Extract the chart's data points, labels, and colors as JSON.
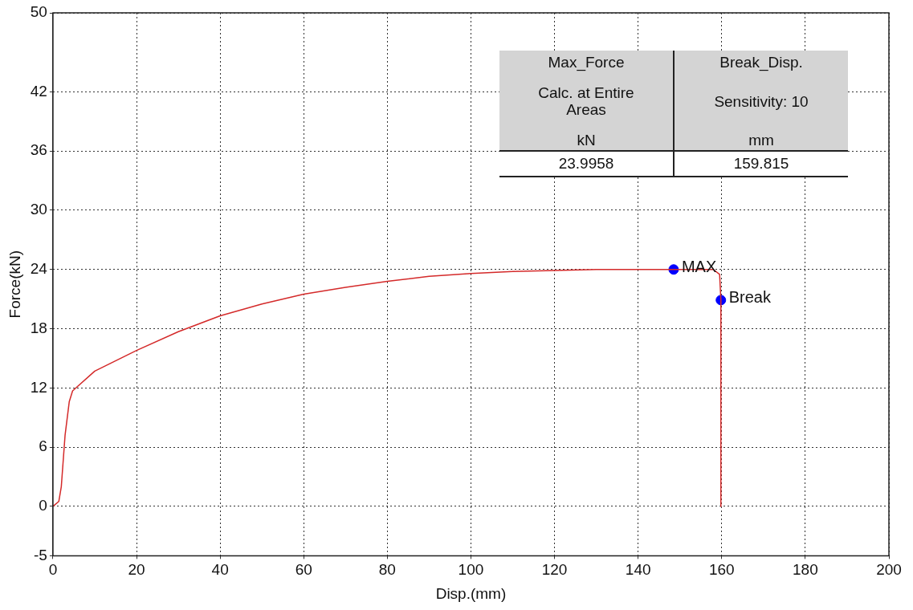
{
  "chart_data": {
    "type": "line",
    "xlabel": "Disp.(mm)",
    "ylabel": "Force(kN)",
    "xlim": [
      0,
      200
    ],
    "xticks": [
      0,
      20,
      40,
      60,
      80,
      100,
      120,
      140,
      160,
      180,
      200
    ],
    "ylim": [
      -5,
      50
    ],
    "yticks": [
      -5,
      0,
      6,
      12,
      18,
      24,
      30,
      36,
      42,
      50
    ],
    "grid": true,
    "legend": false,
    "marker": "none",
    "line_style": "solid",
    "series": [
      {
        "color": "#d42a2a",
        "x": [
          0,
          1.4,
          2.0,
          2.9,
          3.9,
          4.7,
          10,
          20,
          30,
          40,
          50,
          60,
          70,
          80,
          90,
          100,
          110,
          120,
          130,
          140,
          148.5,
          158,
          159.5,
          159.8,
          159.8
        ],
        "values": [
          0,
          0.5,
          2.0,
          7.2,
          10.6,
          11.7,
          13.7,
          15.8,
          17.7,
          19.3,
          20.5,
          21.5,
          22.2,
          22.8,
          23.3,
          23.6,
          23.8,
          23.9,
          24.0,
          24.0,
          24.0,
          24.0,
          23.5,
          20.9,
          0
        ]
      },
      {
        "type": "scatter",
        "name": "MAX",
        "color": "#0000ff",
        "marker": "circle",
        "x": [
          148.5
        ],
        "values": [
          24.0
        ]
      },
      {
        "type": "scatter",
        "name": "Break",
        "color": "#0000ff",
        "marker": "circle",
        "x": [
          159.8
        ],
        "values": [
          20.9
        ]
      }
    ],
    "annotations": [
      "Max_Force",
      "Calc. at Entire Areas",
      "kN",
      "23.9958",
      "Break_Disp.",
      "Sensitivity: 10",
      "mm",
      "159.815"
    ]
  }
}
